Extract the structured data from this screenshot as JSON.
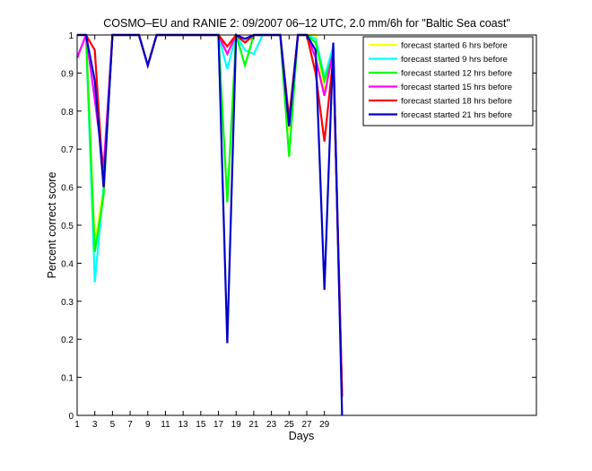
{
  "chart_data": {
    "type": "line",
    "title": "COSMO–EU and RANIE 2: 09/2007 06–12 UTC, 2.0 mm/6h for \"Baltic Sea coast\"",
    "xlabel": "Days",
    "ylabel": "Percent correct score",
    "xlim": [
      1,
      53
    ],
    "ylim": [
      0,
      1
    ],
    "xticks": [
      1,
      3,
      5,
      7,
      9,
      11,
      13,
      15,
      17,
      19,
      21,
      23,
      25,
      27,
      29
    ],
    "yticks": [
      0,
      0.1,
      0.2,
      0.3,
      0.4,
      0.5,
      0.6,
      0.7,
      0.8,
      0.9,
      1
    ],
    "ytick_labels": [
      "0",
      "0.1",
      "0.2",
      "0.3",
      "0.4",
      "0.5",
      "0.6",
      "0.7",
      "0.8",
      "0.9",
      "1"
    ],
    "grid": false,
    "legend_position": "top-right",
    "x": [
      1,
      2,
      3,
      4,
      5,
      6,
      7,
      8,
      9,
      10,
      11,
      12,
      13,
      14,
      15,
      16,
      17,
      18,
      19,
      20,
      21,
      22,
      23,
      24,
      25,
      26,
      27,
      28,
      29,
      30,
      31
    ],
    "series": [
      {
        "name": "forecast started 6 hrs before",
        "color": "#ffff00",
        "values": [
          1,
          1,
          0.45,
          0.6,
          1,
          1,
          1,
          1,
          0.92,
          1,
          1,
          1,
          1,
          1,
          1,
          1,
          1,
          0.95,
          1,
          0.98,
          1,
          1,
          1,
          1,
          0.75,
          1,
          1,
          1,
          0.85,
          0.95,
          0.05
        ]
      },
      {
        "name": "forecast started 9 hrs before",
        "color": "#00ffff",
        "values": [
          0.94,
          1,
          0.35,
          0.6,
          1,
          1,
          1,
          1,
          0.92,
          1,
          1,
          1,
          1,
          1,
          1,
          1,
          1,
          0.91,
          1,
          0.96,
          0.95,
          1,
          1,
          1,
          0.78,
          1,
          1,
          0.99,
          0.89,
          0.97,
          0.05
        ]
      },
      {
        "name": "forecast started 12 hrs before",
        "color": "#00ff00",
        "values": [
          1,
          1,
          0.43,
          0.58,
          1,
          1,
          1,
          1,
          0.92,
          1,
          1,
          1,
          1,
          1,
          1,
          1,
          1,
          0.56,
          1,
          0.92,
          1,
          1,
          1,
          1,
          0.68,
          1,
          1,
          0.98,
          0.88,
          0.95,
          0.05
        ]
      },
      {
        "name": "forecast started 15 hrs before",
        "color": "#ff00ff",
        "values": [
          0.94,
          1,
          0.83,
          0.65,
          1,
          1,
          1,
          1,
          0.92,
          1,
          1,
          1,
          1,
          1,
          1,
          1,
          1,
          0.95,
          1,
          0.98,
          1,
          1,
          1,
          1,
          0.76,
          1,
          1,
          0.94,
          0.84,
          0.96,
          0.05
        ]
      },
      {
        "name": "forecast started 18 hrs before",
        "color": "#ff0000",
        "values": [
          1,
          1,
          0.96,
          0.6,
          1,
          1,
          1,
          1,
          0.92,
          1,
          1,
          1,
          1,
          1,
          1,
          1,
          1,
          0.97,
          1,
          0.98,
          1,
          1,
          1,
          1,
          0.78,
          1,
          1,
          0.9,
          0.72,
          0.94,
          0.05
        ]
      },
      {
        "name": "forecast started 21 hrs before",
        "color": "#0000cc",
        "values": [
          1,
          1,
          0.88,
          0.6,
          1,
          1,
          1,
          1,
          0.92,
          1,
          1,
          1,
          1,
          1,
          1,
          1,
          1,
          0.19,
          1,
          0.99,
          1,
          1,
          1,
          1,
          0.76,
          1,
          1,
          0.96,
          0.33,
          0.98,
          0
        ]
      }
    ]
  }
}
